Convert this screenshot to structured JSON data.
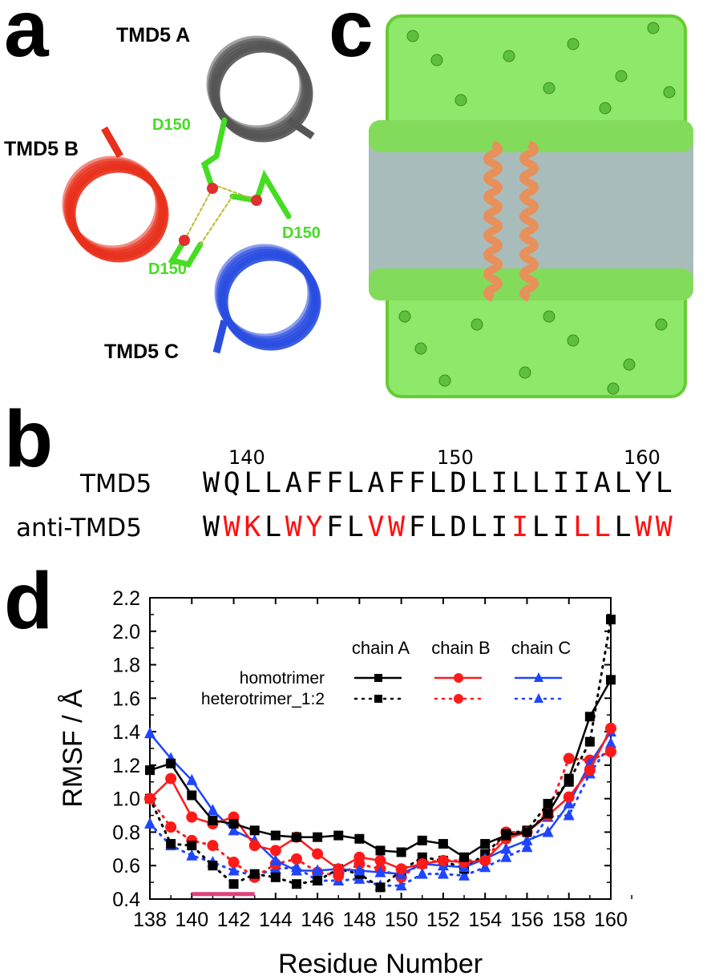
{
  "panels": {
    "a": "a",
    "b": "b",
    "c": "c",
    "d": "d"
  },
  "panel_a": {
    "labels": [
      "TMD5 A",
      "TMD5 B",
      "TMD5 C"
    ],
    "residue_labels": [
      "D150",
      "D150",
      "D150"
    ],
    "colors": {
      "A": "#9a9a9a",
      "B": "#e8301c",
      "C": "#2a4de0",
      "residue": "#44dd22"
    }
  },
  "panel_b": {
    "numbers": [
      "140",
      "150",
      "160"
    ],
    "rows": [
      {
        "name": "TMD5",
        "seq": [
          {
            "c": "W"
          },
          {
            "c": "Q"
          },
          {
            "c": "L"
          },
          {
            "c": "L"
          },
          {
            "c": "A"
          },
          {
            "c": "F"
          },
          {
            "c": "F"
          },
          {
            "c": "L"
          },
          {
            "c": "A"
          },
          {
            "c": "F"
          },
          {
            "c": "F"
          },
          {
            "c": "L"
          },
          {
            "c": "D"
          },
          {
            "c": "L"
          },
          {
            "c": "I"
          },
          {
            "c": "L"
          },
          {
            "c": "L"
          },
          {
            "c": "I"
          },
          {
            "c": "I"
          },
          {
            "c": "A"
          },
          {
            "c": "L"
          },
          {
            "c": "Y"
          },
          {
            "c": "L"
          }
        ]
      },
      {
        "name": "anti-TMD5",
        "seq": [
          {
            "c": "W"
          },
          {
            "c": "W",
            "m": 1
          },
          {
            "c": "K",
            "m": 1
          },
          {
            "c": "L"
          },
          {
            "c": "W",
            "m": 1
          },
          {
            "c": "Y",
            "m": 1
          },
          {
            "c": "F"
          },
          {
            "c": "L"
          },
          {
            "c": "V",
            "m": 1
          },
          {
            "c": "W",
            "m": 1
          },
          {
            "c": "F"
          },
          {
            "c": "L"
          },
          {
            "c": "D"
          },
          {
            "c": "L"
          },
          {
            "c": "I"
          },
          {
            "c": "I",
            "m": 1
          },
          {
            "c": "L"
          },
          {
            "c": "I"
          },
          {
            "c": "L",
            "m": 1
          },
          {
            "c": "L",
            "m": 1
          },
          {
            "c": "L"
          },
          {
            "c": "W",
            "m": 1
          },
          {
            "c": "W",
            "m": 1
          }
        ]
      }
    ],
    "mutation_color": "#ff1010"
  },
  "chart_data": {
    "type": "line",
    "xlabel": "Residue Number",
    "ylabel": "RMSF / Å",
    "xlim": [
      138,
      160
    ],
    "ylim": [
      0.4,
      2.2
    ],
    "xticks": [
      "138",
      "140",
      "142",
      "144",
      "146",
      "148",
      "150",
      "152",
      "154",
      "156",
      "158",
      "160"
    ],
    "yticks": [
      "0.4",
      "0.6",
      "0.8",
      "1.0",
      "1.2",
      "1.4",
      "1.6",
      "1.8",
      "2.0",
      "2.2"
    ],
    "x": [
      138,
      139,
      140,
      141,
      142,
      143,
      144,
      145,
      146,
      147,
      148,
      149,
      150,
      151,
      152,
      153,
      154,
      155,
      156,
      157,
      158,
      159,
      160
    ],
    "legend": {
      "columns": [
        "chain A",
        "chain B",
        "chain C"
      ],
      "rows": [
        "homotrimer",
        "heterotrimer_1:2"
      ],
      "placement": "top-right"
    },
    "highlight": {
      "from": 140,
      "to": 143,
      "y": 0.43,
      "color": "#e0407a"
    },
    "series": [
      {
        "name": "homotrimer chain A",
        "color": "#000000",
        "style": "solid",
        "marker": "square",
        "values": [
          1.17,
          1.21,
          1.02,
          0.87,
          0.85,
          0.81,
          0.78,
          0.77,
          0.77,
          0.78,
          0.76,
          0.69,
          0.68,
          0.75,
          0.73,
          0.65,
          0.73,
          0.78,
          0.8,
          0.91,
          1.12,
          1.49,
          1.71
        ]
      },
      {
        "name": "homotrimer chain B",
        "color": "#ff1a1a",
        "style": "solid",
        "marker": "circle",
        "values": [
          1.0,
          1.12,
          0.89,
          0.85,
          0.89,
          0.72,
          0.69,
          0.77,
          0.67,
          0.58,
          0.65,
          0.63,
          0.58,
          0.61,
          0.63,
          0.62,
          0.63,
          0.76,
          0.8,
          0.9,
          1.01,
          1.17,
          1.42
        ]
      },
      {
        "name": "homotrimer chain C",
        "color": "#1f45ff",
        "style": "solid",
        "marker": "triangle",
        "values": [
          1.39,
          1.24,
          1.11,
          0.93,
          0.81,
          0.75,
          0.63,
          0.57,
          0.57,
          0.58,
          0.57,
          0.56,
          0.55,
          0.61,
          0.6,
          0.59,
          0.64,
          0.7,
          0.75,
          0.8,
          0.97,
          1.21,
          1.4
        ]
      },
      {
        "name": "heterotrimer_1:2 chain A",
        "color": "#000000",
        "style": "dotted",
        "marker": "square",
        "values": [
          1.0,
          0.73,
          0.72,
          0.6,
          0.49,
          0.55,
          0.53,
          0.49,
          0.51,
          0.58,
          0.55,
          0.47,
          0.57,
          0.65,
          0.63,
          0.58,
          0.67,
          0.79,
          0.81,
          0.97,
          1.1,
          1.34,
          2.07
        ]
      },
      {
        "name": "heterotrimer_1:2 chain B",
        "color": "#ff1a1a",
        "style": "dotted",
        "marker": "circle",
        "values": [
          1.0,
          0.83,
          0.75,
          0.72,
          0.62,
          0.53,
          0.61,
          0.64,
          0.56,
          0.54,
          0.61,
          0.58,
          0.53,
          0.62,
          0.63,
          0.63,
          0.63,
          0.8,
          0.8,
          0.92,
          1.24,
          1.23,
          1.28
        ]
      },
      {
        "name": "heterotrimer_1:2 chain C",
        "color": "#1f45ff",
        "style": "dotted",
        "marker": "triangle",
        "values": [
          0.85,
          0.72,
          0.66,
          0.62,
          0.57,
          0.54,
          0.58,
          0.59,
          0.51,
          0.51,
          0.52,
          0.48,
          0.48,
          0.55,
          0.55,
          0.54,
          0.59,
          0.65,
          0.71,
          0.89,
          0.9,
          1.15,
          1.33
        ]
      }
    ]
  }
}
